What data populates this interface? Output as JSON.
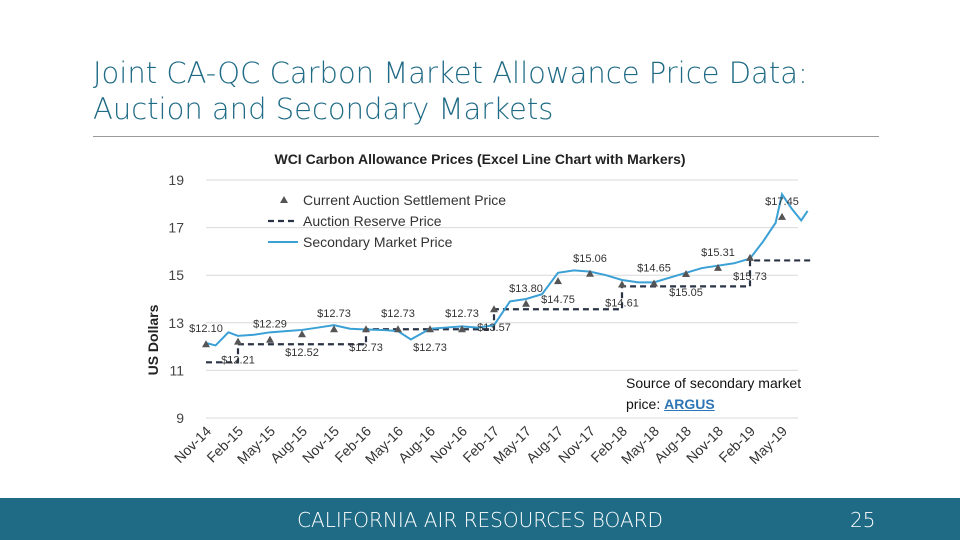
{
  "slide": {
    "title_line1": "Joint CA-QC Carbon Market Allowance Price Data:",
    "title_line2": "Auction and Secondary Markets",
    "source_prefix": "Source of secondary market price: ",
    "source_link": "ARGUS",
    "footer": "CALIFORNIA AIR RESOURCES BOARD",
    "page_number": "25"
  },
  "chart_data": {
    "type": "line",
    "title": "WCI Carbon Allowance Prices (Excel Line Chart with Markers)",
    "xlabel": "",
    "ylabel": "US Dollars",
    "ylim": [
      9,
      19
    ],
    "yticks": [
      9,
      11,
      13,
      15,
      17,
      19
    ],
    "xticks": [
      "Nov-14",
      "Feb-15",
      "May-15",
      "Aug-15",
      "Nov-15",
      "Feb-16",
      "May-16",
      "Aug-16",
      "Nov-16",
      "Feb-17",
      "May-17",
      "Aug-17",
      "Nov-17",
      "Feb-18",
      "May-18",
      "Aug-18",
      "Nov-18",
      "Feb-19",
      "May-19"
    ],
    "legend_position": "top-left",
    "series": [
      {
        "name": "Current Auction Settlement Price",
        "style": "triangle-markers",
        "color": "#555555",
        "points": [
          [
            0,
            12.1
          ],
          [
            1,
            12.21
          ],
          [
            2,
            12.29
          ],
          [
            3,
            12.52
          ],
          [
            4,
            12.73
          ],
          [
            5,
            12.73
          ],
          [
            6,
            12.73
          ],
          [
            7,
            12.73
          ],
          [
            8,
            12.73
          ],
          [
            9,
            13.57
          ],
          [
            10,
            13.8
          ],
          [
            11,
            14.75
          ],
          [
            12,
            15.06
          ],
          [
            13,
            14.61
          ],
          [
            14,
            14.65
          ],
          [
            15,
            15.05
          ],
          [
            16,
            15.31
          ],
          [
            17,
            15.73
          ],
          [
            18,
            17.45
          ]
        ],
        "labels": [
          {
            "x": 0,
            "y": 12.1,
            "text": "$12.10",
            "pos": "above"
          },
          {
            "x": 1,
            "y": 12.21,
            "text": "$12.21",
            "pos": "below"
          },
          {
            "x": 2,
            "y": 12.29,
            "text": "$12.29",
            "pos": "above"
          },
          {
            "x": 3,
            "y": 12.52,
            "text": "$12.52",
            "pos": "below"
          },
          {
            "x": 4,
            "y": 12.73,
            "text": "$12.73",
            "pos": "above"
          },
          {
            "x": 5,
            "y": 12.73,
            "text": "$12.73",
            "pos": "below"
          },
          {
            "x": 6,
            "y": 12.73,
            "text": "$12.73",
            "pos": "above"
          },
          {
            "x": 7,
            "y": 12.73,
            "text": "$12.73",
            "pos": "below"
          },
          {
            "x": 8,
            "y": 12.73,
            "text": "$12.73",
            "pos": "above"
          },
          {
            "x": 9,
            "y": 13.57,
            "text": "$13.57",
            "pos": "below"
          },
          {
            "x": 10,
            "y": 13.8,
            "text": "$13.80",
            "pos": "above"
          },
          {
            "x": 11,
            "y": 14.75,
            "text": "$14.75",
            "pos": "below"
          },
          {
            "x": 12,
            "y": 15.06,
            "text": "$15.06",
            "pos": "above"
          },
          {
            "x": 13,
            "y": 14.61,
            "text": "$14.61",
            "pos": "below"
          },
          {
            "x": 14,
            "y": 14.65,
            "text": "$14.65",
            "pos": "above"
          },
          {
            "x": 15,
            "y": 15.05,
            "text": "$15.05",
            "pos": "below"
          },
          {
            "x": 16,
            "y": 15.31,
            "text": "$15.31",
            "pos": "above"
          },
          {
            "x": 17,
            "y": 15.73,
            "text": "$15.73",
            "pos": "below"
          },
          {
            "x": 18,
            "y": 17.45,
            "text": "$17.45",
            "pos": "above"
          }
        ]
      },
      {
        "name": "Auction Reserve Price",
        "style": "dashed-step",
        "color": "#2a3346",
        "steps": [
          [
            0,
            11.34
          ],
          [
            1,
            12.1
          ],
          [
            5,
            12.73
          ],
          [
            9,
            13.57
          ],
          [
            13,
            14.53
          ],
          [
            17,
            15.62
          ],
          [
            19,
            15.62
          ]
        ]
      },
      {
        "name": "Secondary Market Price",
        "style": "line",
        "color": "#3aa0d5",
        "points": [
          [
            0,
            12.15
          ],
          [
            0.3,
            12.05
          ],
          [
            0.7,
            12.6
          ],
          [
            1,
            12.45
          ],
          [
            1.5,
            12.5
          ],
          [
            2,
            12.6
          ],
          [
            2.5,
            12.65
          ],
          [
            3,
            12.7
          ],
          [
            3.5,
            12.8
          ],
          [
            4,
            12.9
          ],
          [
            4.5,
            12.75
          ],
          [
            5,
            12.72
          ],
          [
            5.5,
            12.7
          ],
          [
            6,
            12.65
          ],
          [
            6.4,
            12.3
          ],
          [
            6.8,
            12.6
          ],
          [
            7,
            12.75
          ],
          [
            7.5,
            12.8
          ],
          [
            8,
            12.85
          ],
          [
            8.5,
            12.8
          ],
          [
            9,
            12.9
          ],
          [
            9.5,
            13.9
          ],
          [
            10,
            14.0
          ],
          [
            10.5,
            14.2
          ],
          [
            11,
            15.1
          ],
          [
            11.5,
            15.2
          ],
          [
            12,
            15.15
          ],
          [
            12.5,
            15.0
          ],
          [
            13,
            14.8
          ],
          [
            13.5,
            14.7
          ],
          [
            14,
            14.7
          ],
          [
            14.5,
            14.9
          ],
          [
            15,
            15.1
          ],
          [
            15.5,
            15.3
          ],
          [
            16,
            15.4
          ],
          [
            16.5,
            15.5
          ],
          [
            17,
            15.7
          ],
          [
            17.4,
            16.4
          ],
          [
            17.8,
            17.2
          ],
          [
            18,
            18.4
          ],
          [
            18.3,
            17.8
          ],
          [
            18.6,
            17.3
          ],
          [
            18.8,
            17.7
          ]
        ]
      }
    ]
  }
}
